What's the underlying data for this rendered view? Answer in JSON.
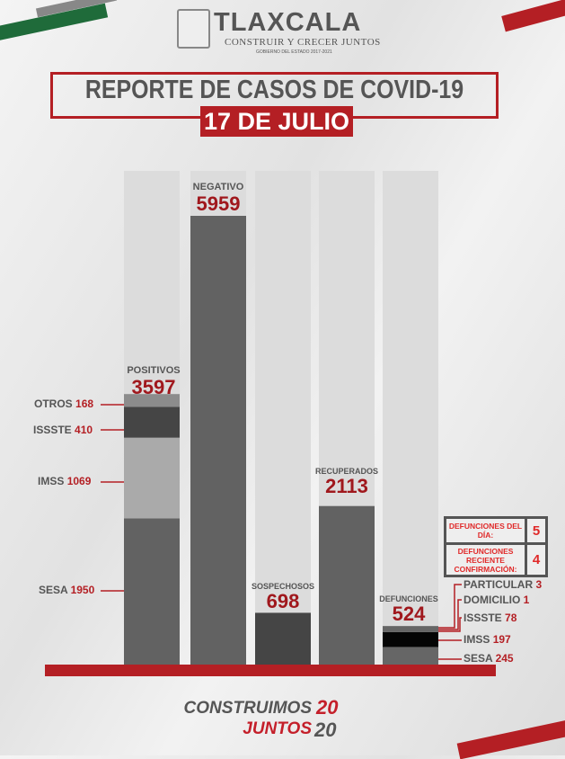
{
  "header": {
    "logo_title": "TLAXCALA",
    "logo_subtitle": "CONSTRUIR Y CRECER JUNTOS",
    "logo_small": "GOBIERNO DEL ESTADO 2017-2021",
    "title": "REPORTE DE CASOS DE COVID-19",
    "date": "17 DE JULIO"
  },
  "chart_data": {
    "type": "bar",
    "categories": [
      "POSITIVOS",
      "NEGATIVO",
      "SOSPECHOSOS",
      "RECUPERADOS",
      "DEFUNCIONES"
    ],
    "values": [
      3597,
      5959,
      698,
      2113,
      524
    ],
    "stacks": {
      "POSITIVOS": [
        {
          "name": "SESA",
          "value": 1950,
          "color": "#626262"
        },
        {
          "name": "IMSS",
          "value": 1069,
          "color": "#aaaaaa"
        },
        {
          "name": "ISSSTE",
          "value": 410,
          "color": "#454545"
        },
        {
          "name": "OTROS",
          "value": 168,
          "color": "#8c8c8c"
        }
      ],
      "DEFUNCIONES": [
        {
          "name": "SESA",
          "value": 245,
          "color": "#666666"
        },
        {
          "name": "IMSS",
          "value": 197,
          "color": "#050505"
        },
        {
          "name": "ISSSTE",
          "value": 78,
          "color": "#666666"
        },
        {
          "name": "DOMICILIO",
          "value": 1,
          "color": "#666666"
        },
        {
          "name": "PARTICULAR",
          "value": 3,
          "color": "#666666"
        }
      ]
    },
    "colors": {
      "bar": "#626262",
      "sospechosos": "#454545",
      "track": "#dcdcdc",
      "base": "#b41f24"
    }
  },
  "info": {
    "day_label": "DEFUNCIONES DEL DÍA:",
    "day_value": "5",
    "recent_label": "DEFUNCIONES RECIENTE CONFIRMACIÓN:",
    "recent_value": "4"
  },
  "footer": {
    "line1": "CONSTRUIMOS",
    "line2": "JUNTOS",
    "year1": "20",
    "year2": "20"
  }
}
